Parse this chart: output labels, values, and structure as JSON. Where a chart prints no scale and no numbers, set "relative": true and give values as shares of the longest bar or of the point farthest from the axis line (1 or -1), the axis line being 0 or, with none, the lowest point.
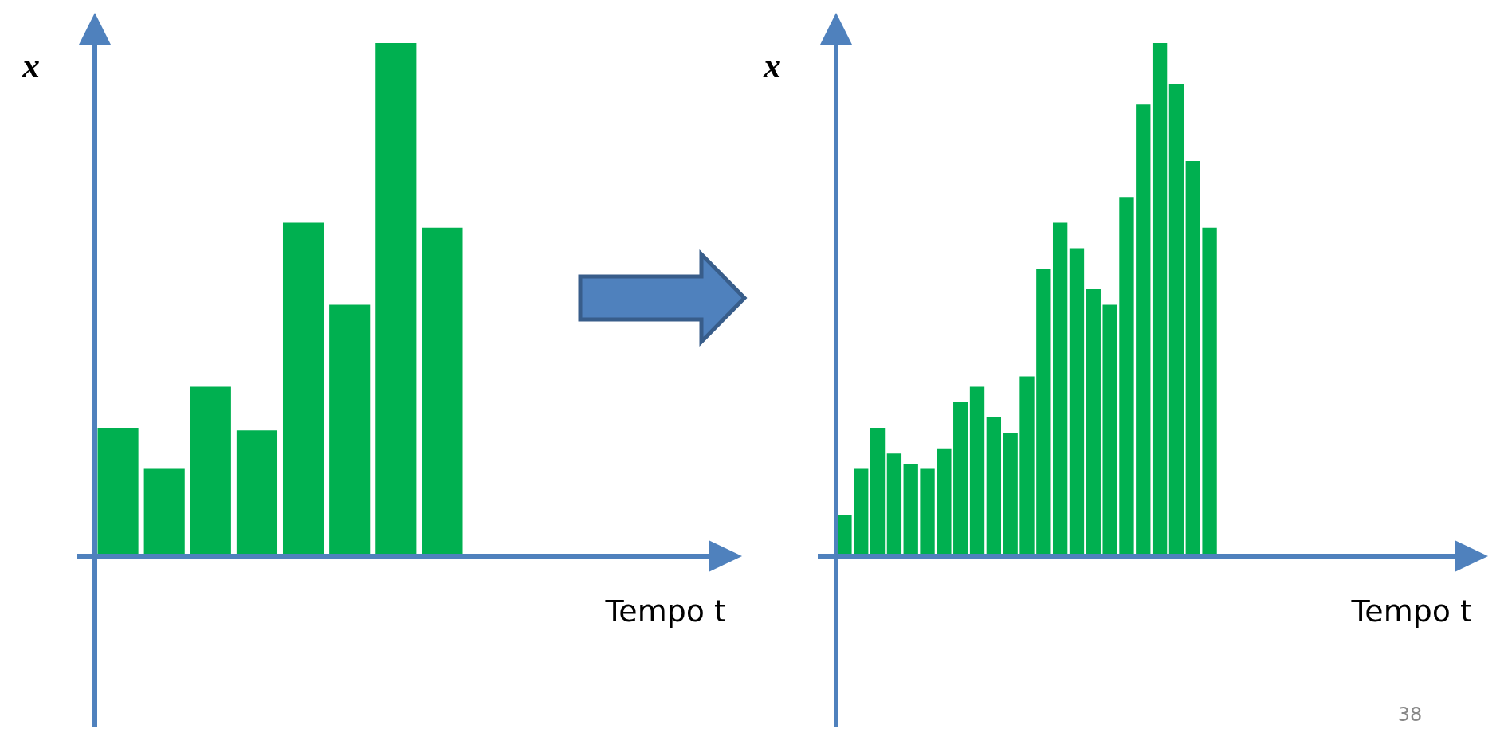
{
  "chart_data": [
    {
      "type": "bar",
      "relative": true,
      "ylabel": "x",
      "xlabel": "Tempo t",
      "color": "#00b050",
      "categories": [
        null,
        null,
        null,
        null,
        null,
        null,
        null,
        null
      ],
      "values": [
        0.25,
        0.17,
        0.33,
        0.245,
        0.65,
        0.49,
        1,
        0.64
      ]
    },
    {
      "type": "bar",
      "relative": true,
      "ylabel": "x",
      "xlabel": "Tempo t",
      "color": "#00b050",
      "categories": [
        null,
        null,
        null,
        null,
        null,
        null,
        null,
        null,
        null,
        null,
        null,
        null,
        null,
        null,
        null,
        null,
        null,
        null,
        null,
        null,
        null,
        null,
        null
      ],
      "values": [
        0.08,
        0.17,
        0.25,
        0.2,
        0.18,
        0.17,
        0.21,
        0.3,
        0.33,
        0.27,
        0.24,
        0.35,
        0.56,
        0.65,
        0.6,
        0.52,
        0.49,
        0.7,
        0.88,
        1,
        0.92,
        0.77,
        0.64
      ],
      "annotations": [
        "38"
      ]
    }
  ]
}
